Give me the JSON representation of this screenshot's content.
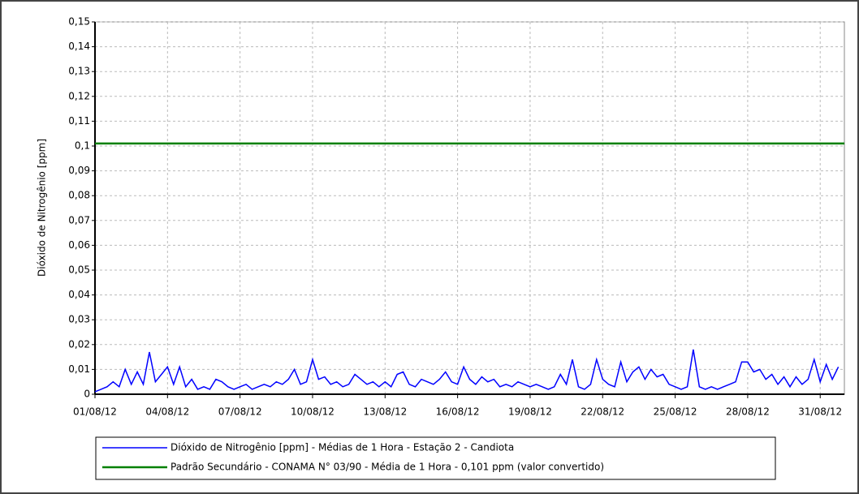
{
  "chart_data": {
    "type": "line",
    "y_label": "Dióxido de Nitrogênio [ppm]",
    "xlim": [
      1,
      32
    ],
    "xticks": [
      {
        "value": 1,
        "label": "01/08/12"
      },
      {
        "value": 4,
        "label": "04/08/12"
      },
      {
        "value": 7,
        "label": "07/08/12"
      },
      {
        "value": 10,
        "label": "10/08/12"
      },
      {
        "value": 13,
        "label": "13/08/12"
      },
      {
        "value": 16,
        "label": "16/08/12"
      },
      {
        "value": 19,
        "label": "19/08/12"
      },
      {
        "value": 22,
        "label": "22/08/12"
      },
      {
        "value": 25,
        "label": "25/08/12"
      },
      {
        "value": 28,
        "label": "28/08/12"
      },
      {
        "value": 31,
        "label": "31/08/12"
      }
    ],
    "ylim": [
      0,
      0.15
    ],
    "yticks": [
      0,
      {
        "value": 0.01,
        "label": "0,01"
      },
      {
        "value": 0.02,
        "label": "0,02"
      },
      {
        "value": 0.03,
        "label": "0,03"
      },
      {
        "value": 0.04,
        "label": "0,04"
      },
      {
        "value": 0.05,
        "label": "0,05"
      },
      {
        "value": 0.06,
        "label": "0,06"
      },
      {
        "value": 0.07,
        "label": "0,07"
      },
      {
        "value": 0.08,
        "label": "0,08"
      },
      {
        "value": 0.09,
        "label": "0,09"
      },
      {
        "value": 0.1,
        "label": "0,1"
      },
      {
        "value": 0.11,
        "label": "0,11"
      },
      {
        "value": 0.12,
        "label": "0,12"
      },
      {
        "value": 0.13,
        "label": "0,13"
      },
      {
        "value": 0.14,
        "label": "0,14"
      },
      {
        "value": 0.15,
        "label": "0,15"
      }
    ],
    "grid": true,
    "series": [
      {
        "name": "Dióxido de Nitrogênio [ppm] - Médias de 1 Hora - Estação 2 - Candiota",
        "color": "#0000ff",
        "x": [
          1,
          1.25,
          1.5,
          1.75,
          2,
          2.25,
          2.5,
          2.75,
          3,
          3.25,
          3.5,
          3.75,
          4,
          4.25,
          4.5,
          4.75,
          5,
          5.25,
          5.5,
          5.75,
          6,
          6.25,
          6.5,
          6.75,
          7,
          7.25,
          7.5,
          7.75,
          8,
          8.25,
          8.5,
          8.75,
          9,
          9.25,
          9.5,
          9.75,
          10,
          10.25,
          10.5,
          10.75,
          11,
          11.25,
          11.5,
          11.75,
          12,
          12.25,
          12.5,
          12.75,
          13,
          13.25,
          13.5,
          13.75,
          14,
          14.25,
          14.5,
          14.75,
          15,
          15.25,
          15.5,
          15.75,
          16,
          16.25,
          16.5,
          16.75,
          17,
          17.25,
          17.5,
          17.75,
          18,
          18.25,
          18.5,
          18.75,
          19,
          19.25,
          19.5,
          19.75,
          20,
          20.25,
          20.5,
          20.75,
          21,
          21.25,
          21.5,
          21.75,
          22,
          22.25,
          22.5,
          22.75,
          23,
          23.25,
          23.5,
          23.75,
          24,
          24.25,
          24.5,
          24.75,
          25,
          25.25,
          25.5,
          25.75,
          26,
          26.25,
          26.5,
          26.75,
          27,
          27.25,
          27.5,
          27.75,
          28,
          28.25,
          28.5,
          28.75,
          29,
          29.25,
          29.5,
          29.75,
          30,
          30.25,
          30.5,
          30.75,
          31,
          31.25,
          31.5,
          31.75
        ],
        "values": [
          0.001,
          0.002,
          0.003,
          0.005,
          0.003,
          0.01,
          0.004,
          0.009,
          0.004,
          0.017,
          0.005,
          0.008,
          0.011,
          0.004,
          0.011,
          0.003,
          0.006,
          0.002,
          0.003,
          0.002,
          0.006,
          0.005,
          0.003,
          0.002,
          0.003,
          0.004,
          0.002,
          0.003,
          0.004,
          0.003,
          0.005,
          0.004,
          0.006,
          0.01,
          0.004,
          0.005,
          0.014,
          0.006,
          0.007,
          0.004,
          0.005,
          0.003,
          0.004,
          0.008,
          0.006,
          0.004,
          0.005,
          0.003,
          0.005,
          0.003,
          0.008,
          0.009,
          0.004,
          0.003,
          0.006,
          0.005,
          0.004,
          0.006,
          0.009,
          0.005,
          0.004,
          0.011,
          0.006,
          0.004,
          0.007,
          0.005,
          0.006,
          0.003,
          0.004,
          0.003,
          0.005,
          0.004,
          0.003,
          0.004,
          0.003,
          0.002,
          0.003,
          0.008,
          0.004,
          0.014,
          0.003,
          0.002,
          0.004,
          0.014,
          0.006,
          0.004,
          0.003,
          0.013,
          0.005,
          0.009,
          0.011,
          0.006,
          0.01,
          0.007,
          0.008,
          0.004,
          0.003,
          0.002,
          0.003,
          0.018,
          0.003,
          0.002,
          0.003,
          0.002,
          0.003,
          0.004,
          0.005,
          0.013,
          0.013,
          0.009,
          0.01,
          0.006,
          0.008,
          0.004,
          0.007,
          0.003,
          0.007,
          0.004,
          0.006,
          0.014,
          0.005,
          0.012,
          0.006,
          0.011
        ]
      },
      {
        "name": "Padrão Secundário - CONAMA N° 03/90 - Média de 1 Hora - 0,101 ppm (valor convertido)",
        "color": "#008000",
        "x": [
          1,
          32
        ],
        "values": [
          0.101,
          0.101
        ]
      }
    ]
  }
}
